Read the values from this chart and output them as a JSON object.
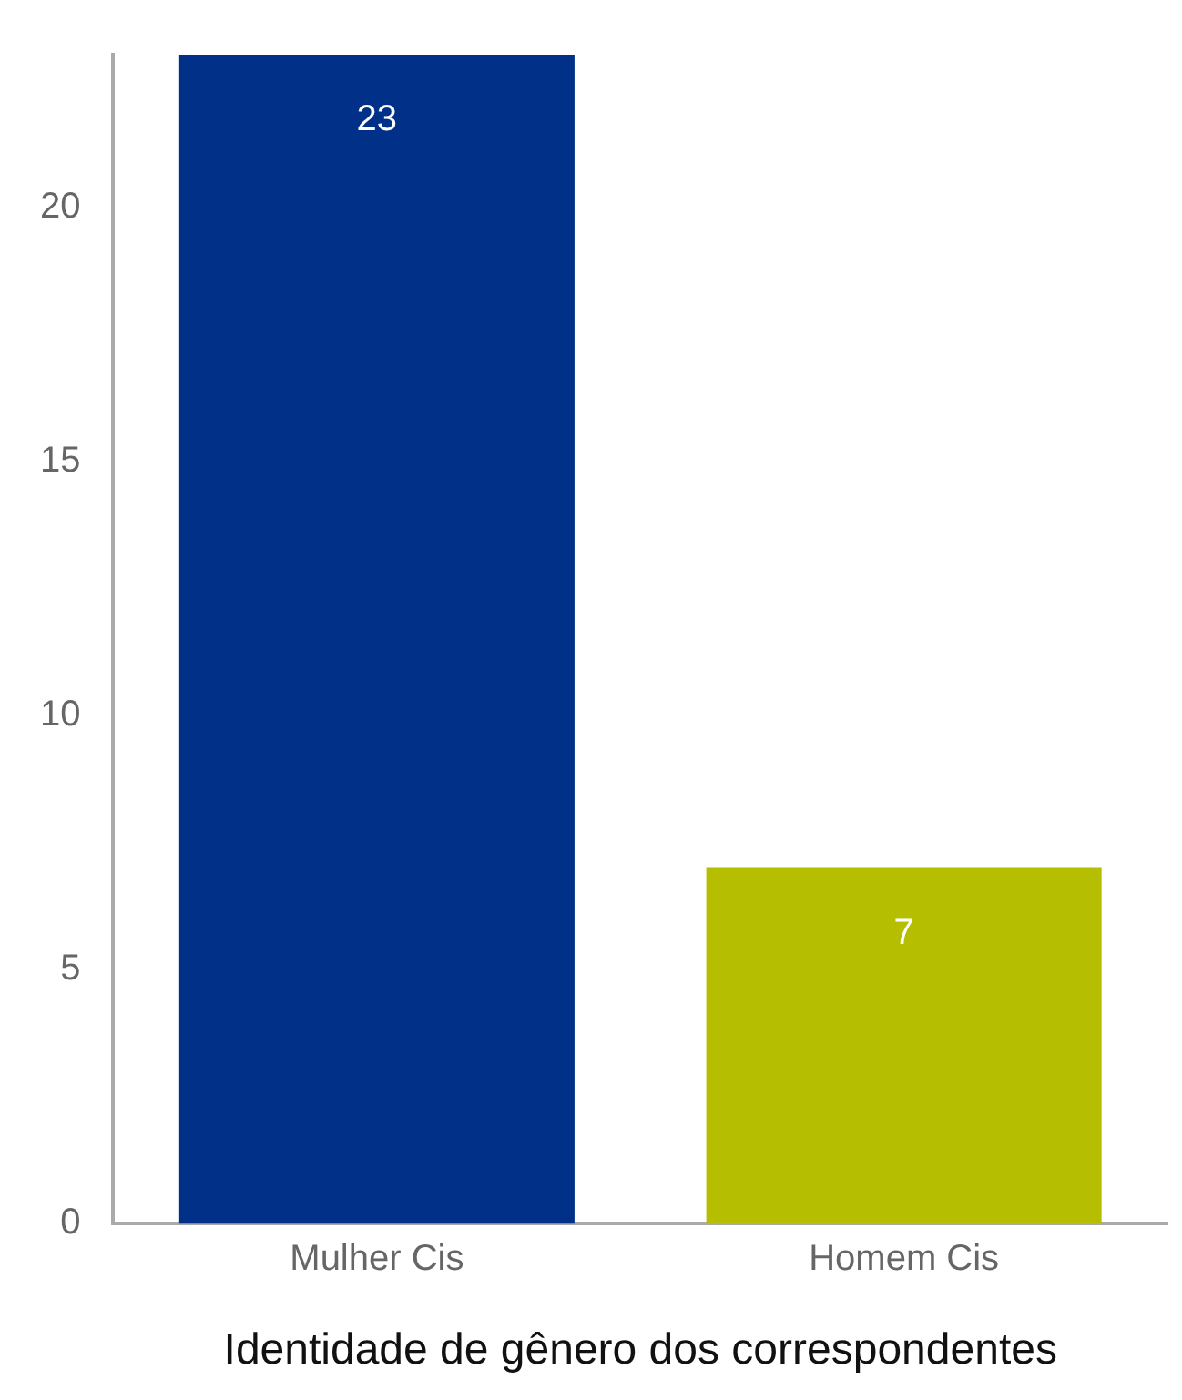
{
  "chart_data": {
    "type": "bar",
    "xlabel": "Identidade de gênero dos correspondentes",
    "categories": [
      "Mulher Cis",
      "Homem Cis"
    ],
    "values": [
      23,
      7
    ],
    "colors": [
      "#003087",
      "#b5be00"
    ],
    "ylim": [
      0,
      23
    ],
    "yticks": [
      0,
      5,
      10,
      15,
      20
    ],
    "grid": false,
    "legend": false,
    "data_labels": true
  }
}
